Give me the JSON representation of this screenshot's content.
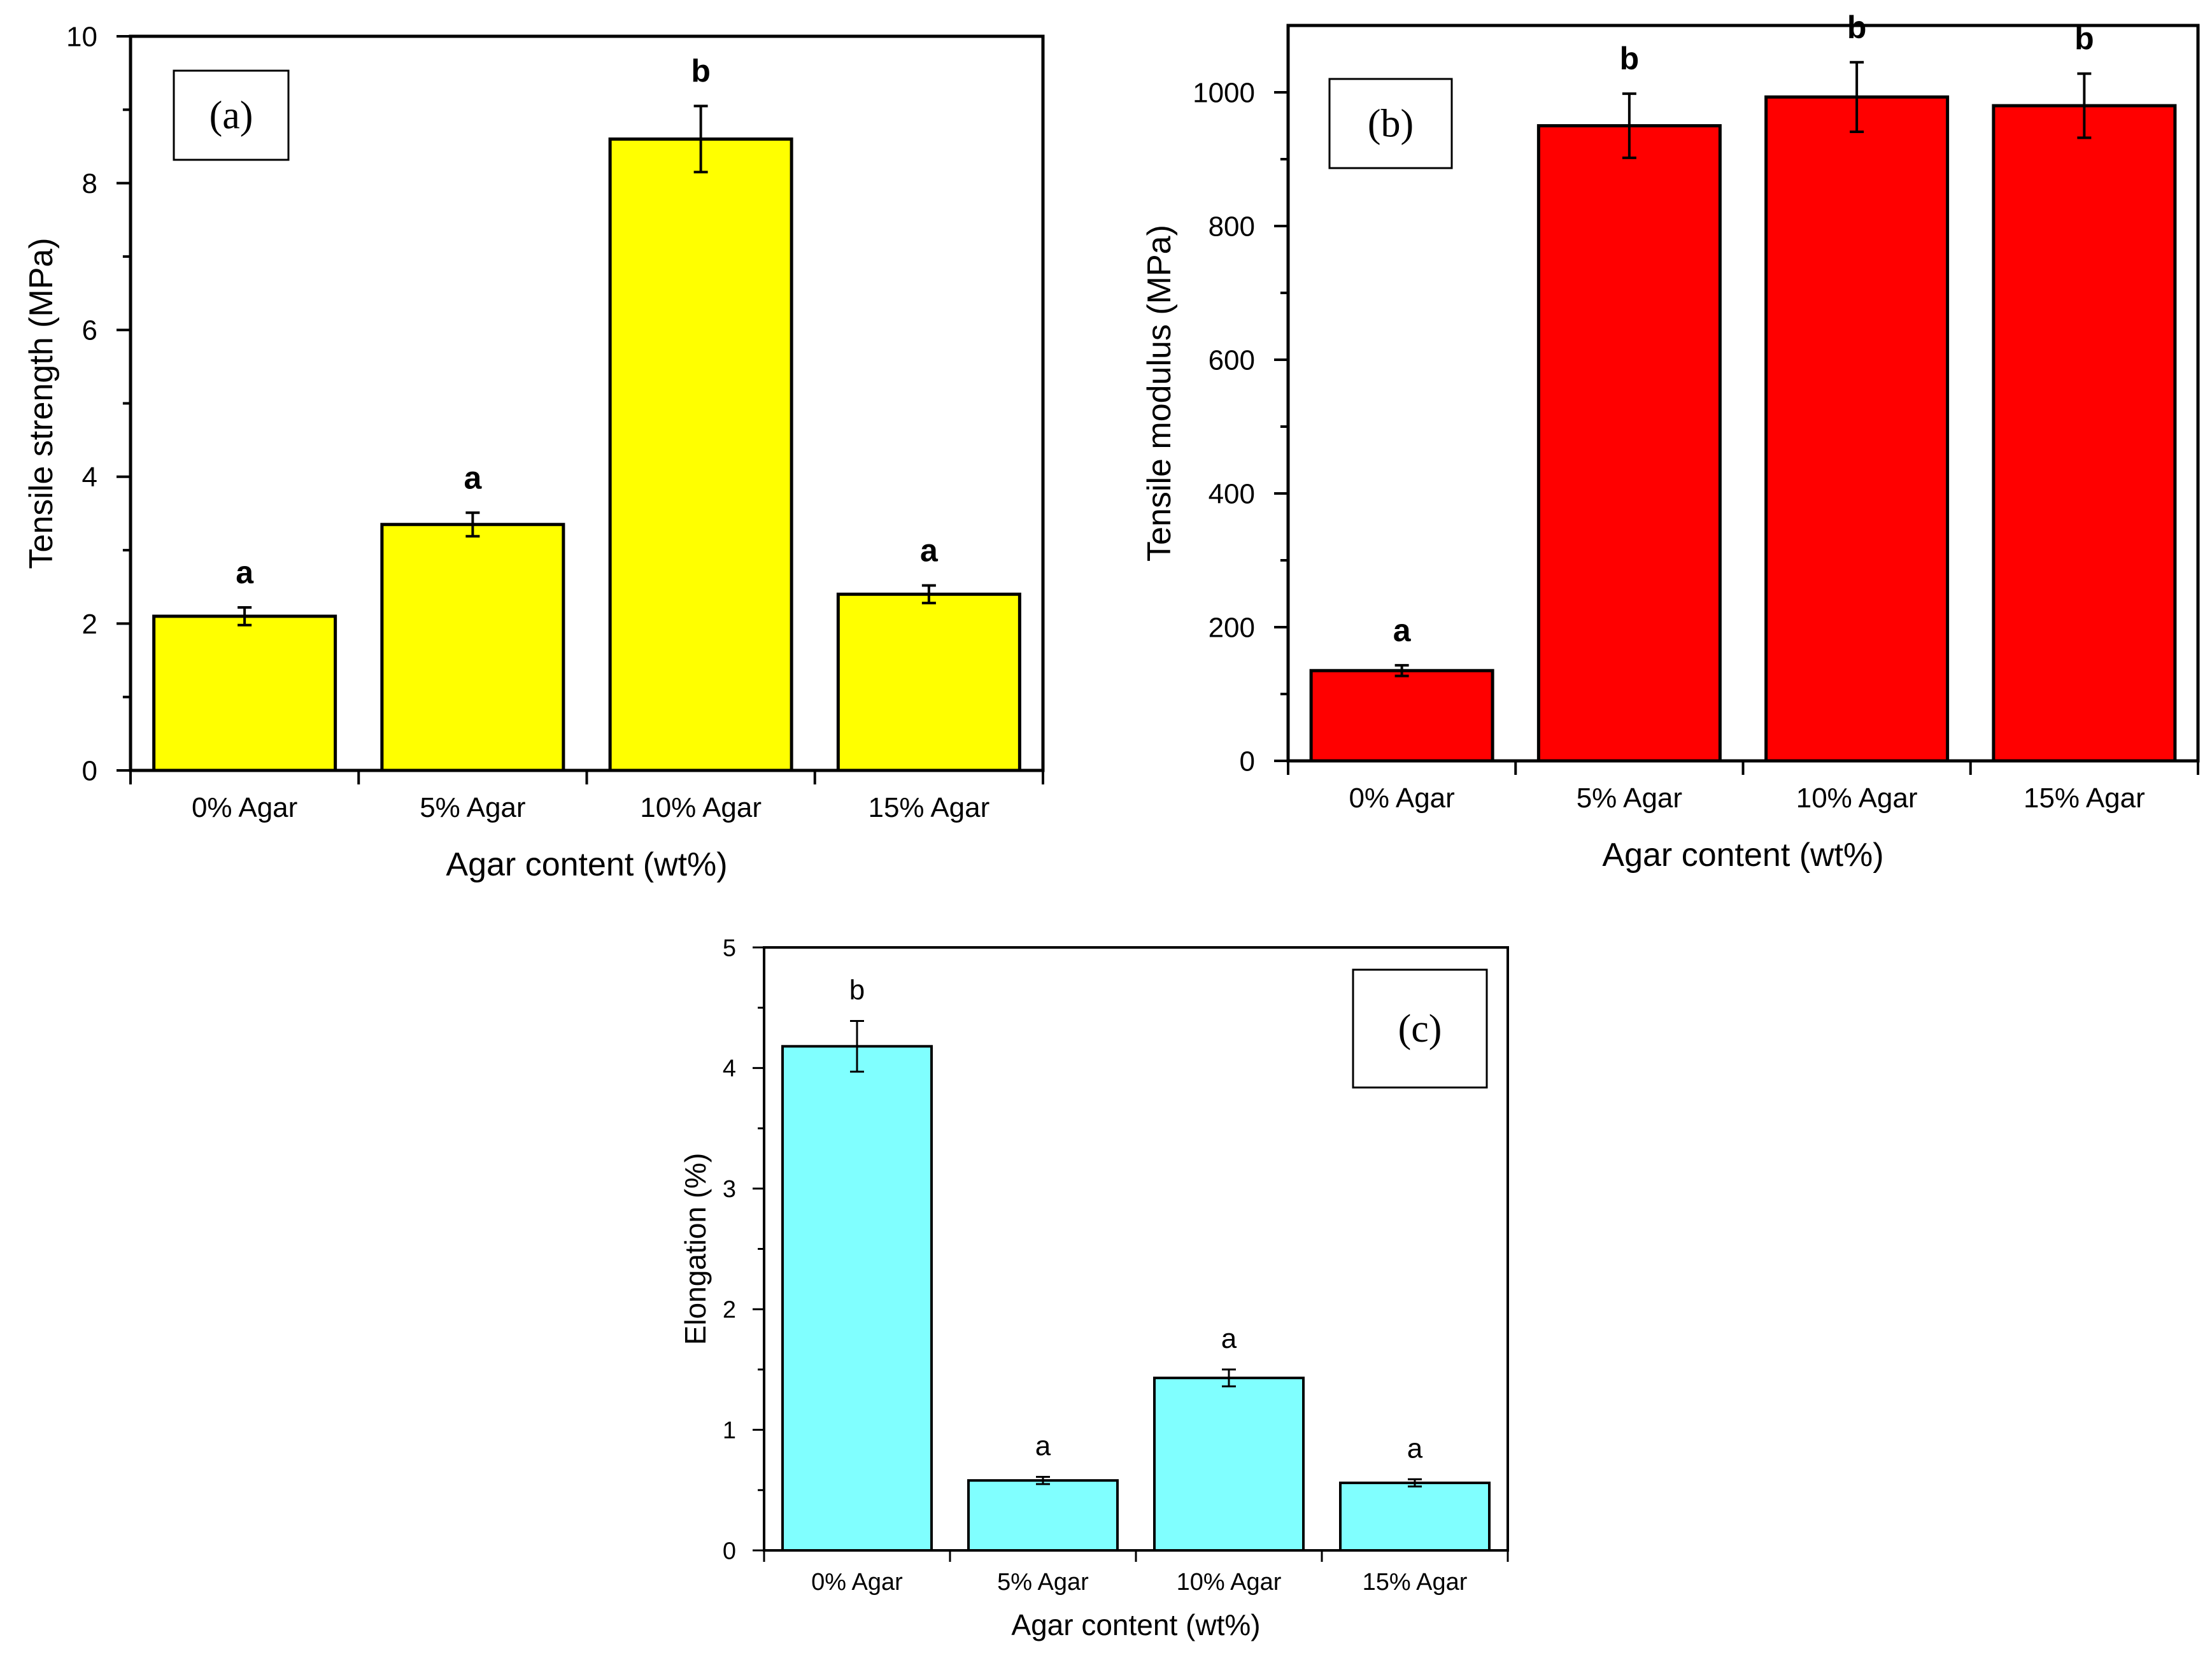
{
  "chart_data": [
    {
      "type": "bar",
      "panel_label": "(a)",
      "categories": [
        "0% Agar",
        "5% Agar",
        "10% Agar",
        "15% Agar"
      ],
      "values": [
        2.1,
        3.35,
        8.6,
        2.4
      ],
      "errors": [
        0.12,
        0.16,
        0.45,
        0.12
      ],
      "significance": [
        "a",
        "a",
        "b",
        "a"
      ],
      "xlabel": "Agar content (wt%)",
      "ylabel": "Tensile strength (MPa)",
      "ylim": [
        0,
        10
      ],
      "yticks": [
        0,
        2,
        4,
        6,
        8,
        10
      ],
      "bar_color": "#ffff00",
      "grid": false
    },
    {
      "type": "bar",
      "panel_label": "(b)",
      "categories": [
        "0% Agar",
        "5% Agar",
        "10% Agar",
        "15% Agar"
      ],
      "values": [
        135,
        950,
        993,
        980
      ],
      "errors": [
        8,
        48,
        52,
        48
      ],
      "significance": [
        "a",
        "b",
        "b",
        "b"
      ],
      "xlabel": "Agar content (wt%)",
      "ylabel": "Tensile modulus (MPa)",
      "ylim": [
        0,
        1100
      ],
      "yticks": [
        0,
        200,
        400,
        600,
        800,
        1000
      ],
      "bar_color": "#ff0000",
      "grid": false
    },
    {
      "type": "bar",
      "panel_label": "(c)",
      "categories": [
        "0% Agar",
        "5% Agar",
        "10% Agar",
        "15% Agar"
      ],
      "values": [
        4.18,
        0.58,
        1.43,
        0.56
      ],
      "errors": [
        0.21,
        0.03,
        0.07,
        0.03
      ],
      "significance": [
        "b",
        "a",
        "a",
        "a"
      ],
      "xlabel": "Agar content (wt%)",
      "ylabel": "Elongation (%)",
      "ylim": [
        0,
        5
      ],
      "yticks": [
        0,
        1,
        2,
        3,
        4,
        5
      ],
      "bar_color": "#80ffff",
      "grid": false
    }
  ]
}
